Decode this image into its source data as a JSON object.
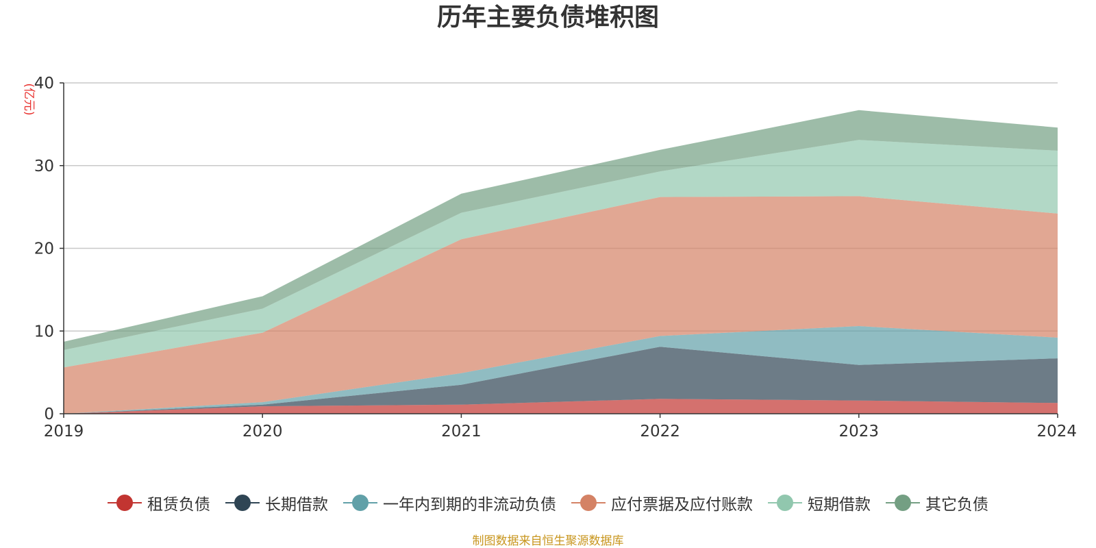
{
  "chart_data": {
    "type": "area",
    "stacked": true,
    "title": "历年主要负债堆积图",
    "ylabel": "(亿元)",
    "xlabel": "",
    "x": [
      "2019",
      "2020",
      "2021",
      "2022",
      "2023",
      "2024"
    ],
    "ylim": [
      0,
      40
    ],
    "yticks": [
      "0",
      "10",
      "20",
      "30",
      "40"
    ],
    "grid": true,
    "legend_position": "bottom",
    "series": [
      {
        "name": "租赁负债",
        "color": "#c23531",
        "values": [
          0.0,
          0.9,
          1.1,
          1.8,
          1.6,
          1.3
        ]
      },
      {
        "name": "长期借款",
        "color": "#2f4554",
        "values": [
          0.0,
          0.2,
          2.4,
          6.3,
          4.3,
          5.4
        ]
      },
      {
        "name": "一年内到期的非流动负债",
        "color": "#61a0a8",
        "values": [
          0.0,
          0.3,
          1.4,
          1.3,
          4.7,
          2.5
        ]
      },
      {
        "name": "应付票据及应付账款",
        "color": "#d48265",
        "values": [
          5.6,
          8.4,
          16.2,
          16.8,
          15.7,
          15.0
        ]
      },
      {
        "name": "短期借款",
        "color": "#91c7ae",
        "values": [
          2.1,
          2.9,
          3.2,
          3.1,
          6.8,
          7.6
        ]
      },
      {
        "name": "其它负债",
        "color": "#749f83",
        "values": [
          1.0,
          1.5,
          2.3,
          2.6,
          3.6,
          2.8
        ]
      }
    ]
  },
  "footer": {
    "source": "制图数据来自恒生聚源数据库"
  }
}
